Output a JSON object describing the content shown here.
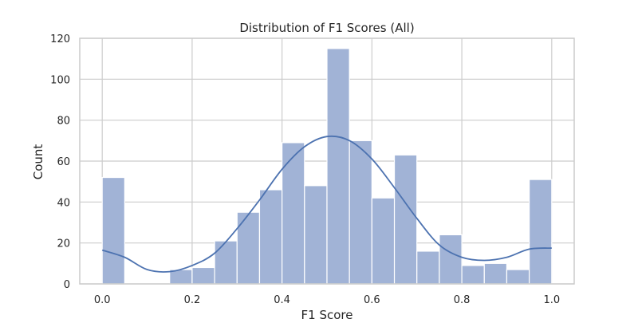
{
  "chart_data": {
    "type": "bar",
    "title": "Distribution of F1 Scores (All)",
    "xlabel": "F1 Score",
    "ylabel": "Count",
    "xlim": [
      -0.05,
      1.05
    ],
    "ylim": [
      0,
      120
    ],
    "x_ticks": [
      "0.0",
      "0.2",
      "0.4",
      "0.6",
      "0.8",
      "1.0"
    ],
    "y_ticks": [
      "0",
      "20",
      "40",
      "60",
      "80",
      "100",
      "120"
    ],
    "grid": true,
    "bins": [
      {
        "x0": 0.0,
        "x1": 0.05,
        "count": 52
      },
      {
        "x0": 0.05,
        "x1": 0.1,
        "count": 0
      },
      {
        "x0": 0.1,
        "x1": 0.15,
        "count": 0
      },
      {
        "x0": 0.15,
        "x1": 0.2,
        "count": 7
      },
      {
        "x0": 0.2,
        "x1": 0.25,
        "count": 8
      },
      {
        "x0": 0.25,
        "x1": 0.3,
        "count": 21
      },
      {
        "x0": 0.3,
        "x1": 0.35,
        "count": 35
      },
      {
        "x0": 0.35,
        "x1": 0.4,
        "count": 46
      },
      {
        "x0": 0.4,
        "x1": 0.45,
        "count": 69
      },
      {
        "x0": 0.45,
        "x1": 0.5,
        "count": 48
      },
      {
        "x0": 0.5,
        "x1": 0.55,
        "count": 115
      },
      {
        "x0": 0.55,
        "x1": 0.6,
        "count": 70
      },
      {
        "x0": 0.6,
        "x1": 0.65,
        "count": 42
      },
      {
        "x0": 0.65,
        "x1": 0.7,
        "count": 63
      },
      {
        "x0": 0.7,
        "x1": 0.75,
        "count": 16
      },
      {
        "x0": 0.75,
        "x1": 0.8,
        "count": 24
      },
      {
        "x0": 0.8,
        "x1": 0.85,
        "count": 9
      },
      {
        "x0": 0.85,
        "x1": 0.9,
        "count": 10
      },
      {
        "x0": 0.9,
        "x1": 0.95,
        "count": 7
      },
      {
        "x0": 0.95,
        "x1": 1.0,
        "count": 51
      }
    ],
    "kde": {
      "x": [
        0.0,
        0.05,
        0.1,
        0.15,
        0.2,
        0.25,
        0.3,
        0.35,
        0.4,
        0.45,
        0.5,
        0.55,
        0.6,
        0.65,
        0.7,
        0.75,
        0.8,
        0.85,
        0.9,
        0.95,
        1.0
      ],
      "y": [
        16.5,
        13,
        7,
        6,
        9,
        15,
        27,
        41,
        56,
        67,
        72,
        70,
        61,
        47,
        32,
        19,
        13,
        11.5,
        13,
        17,
        17.5
      ]
    },
    "colors": {
      "bar_fill": "#a1b3d6",
      "bar_edge": "#ffffff",
      "kde_line": "#4c72b0"
    }
  }
}
